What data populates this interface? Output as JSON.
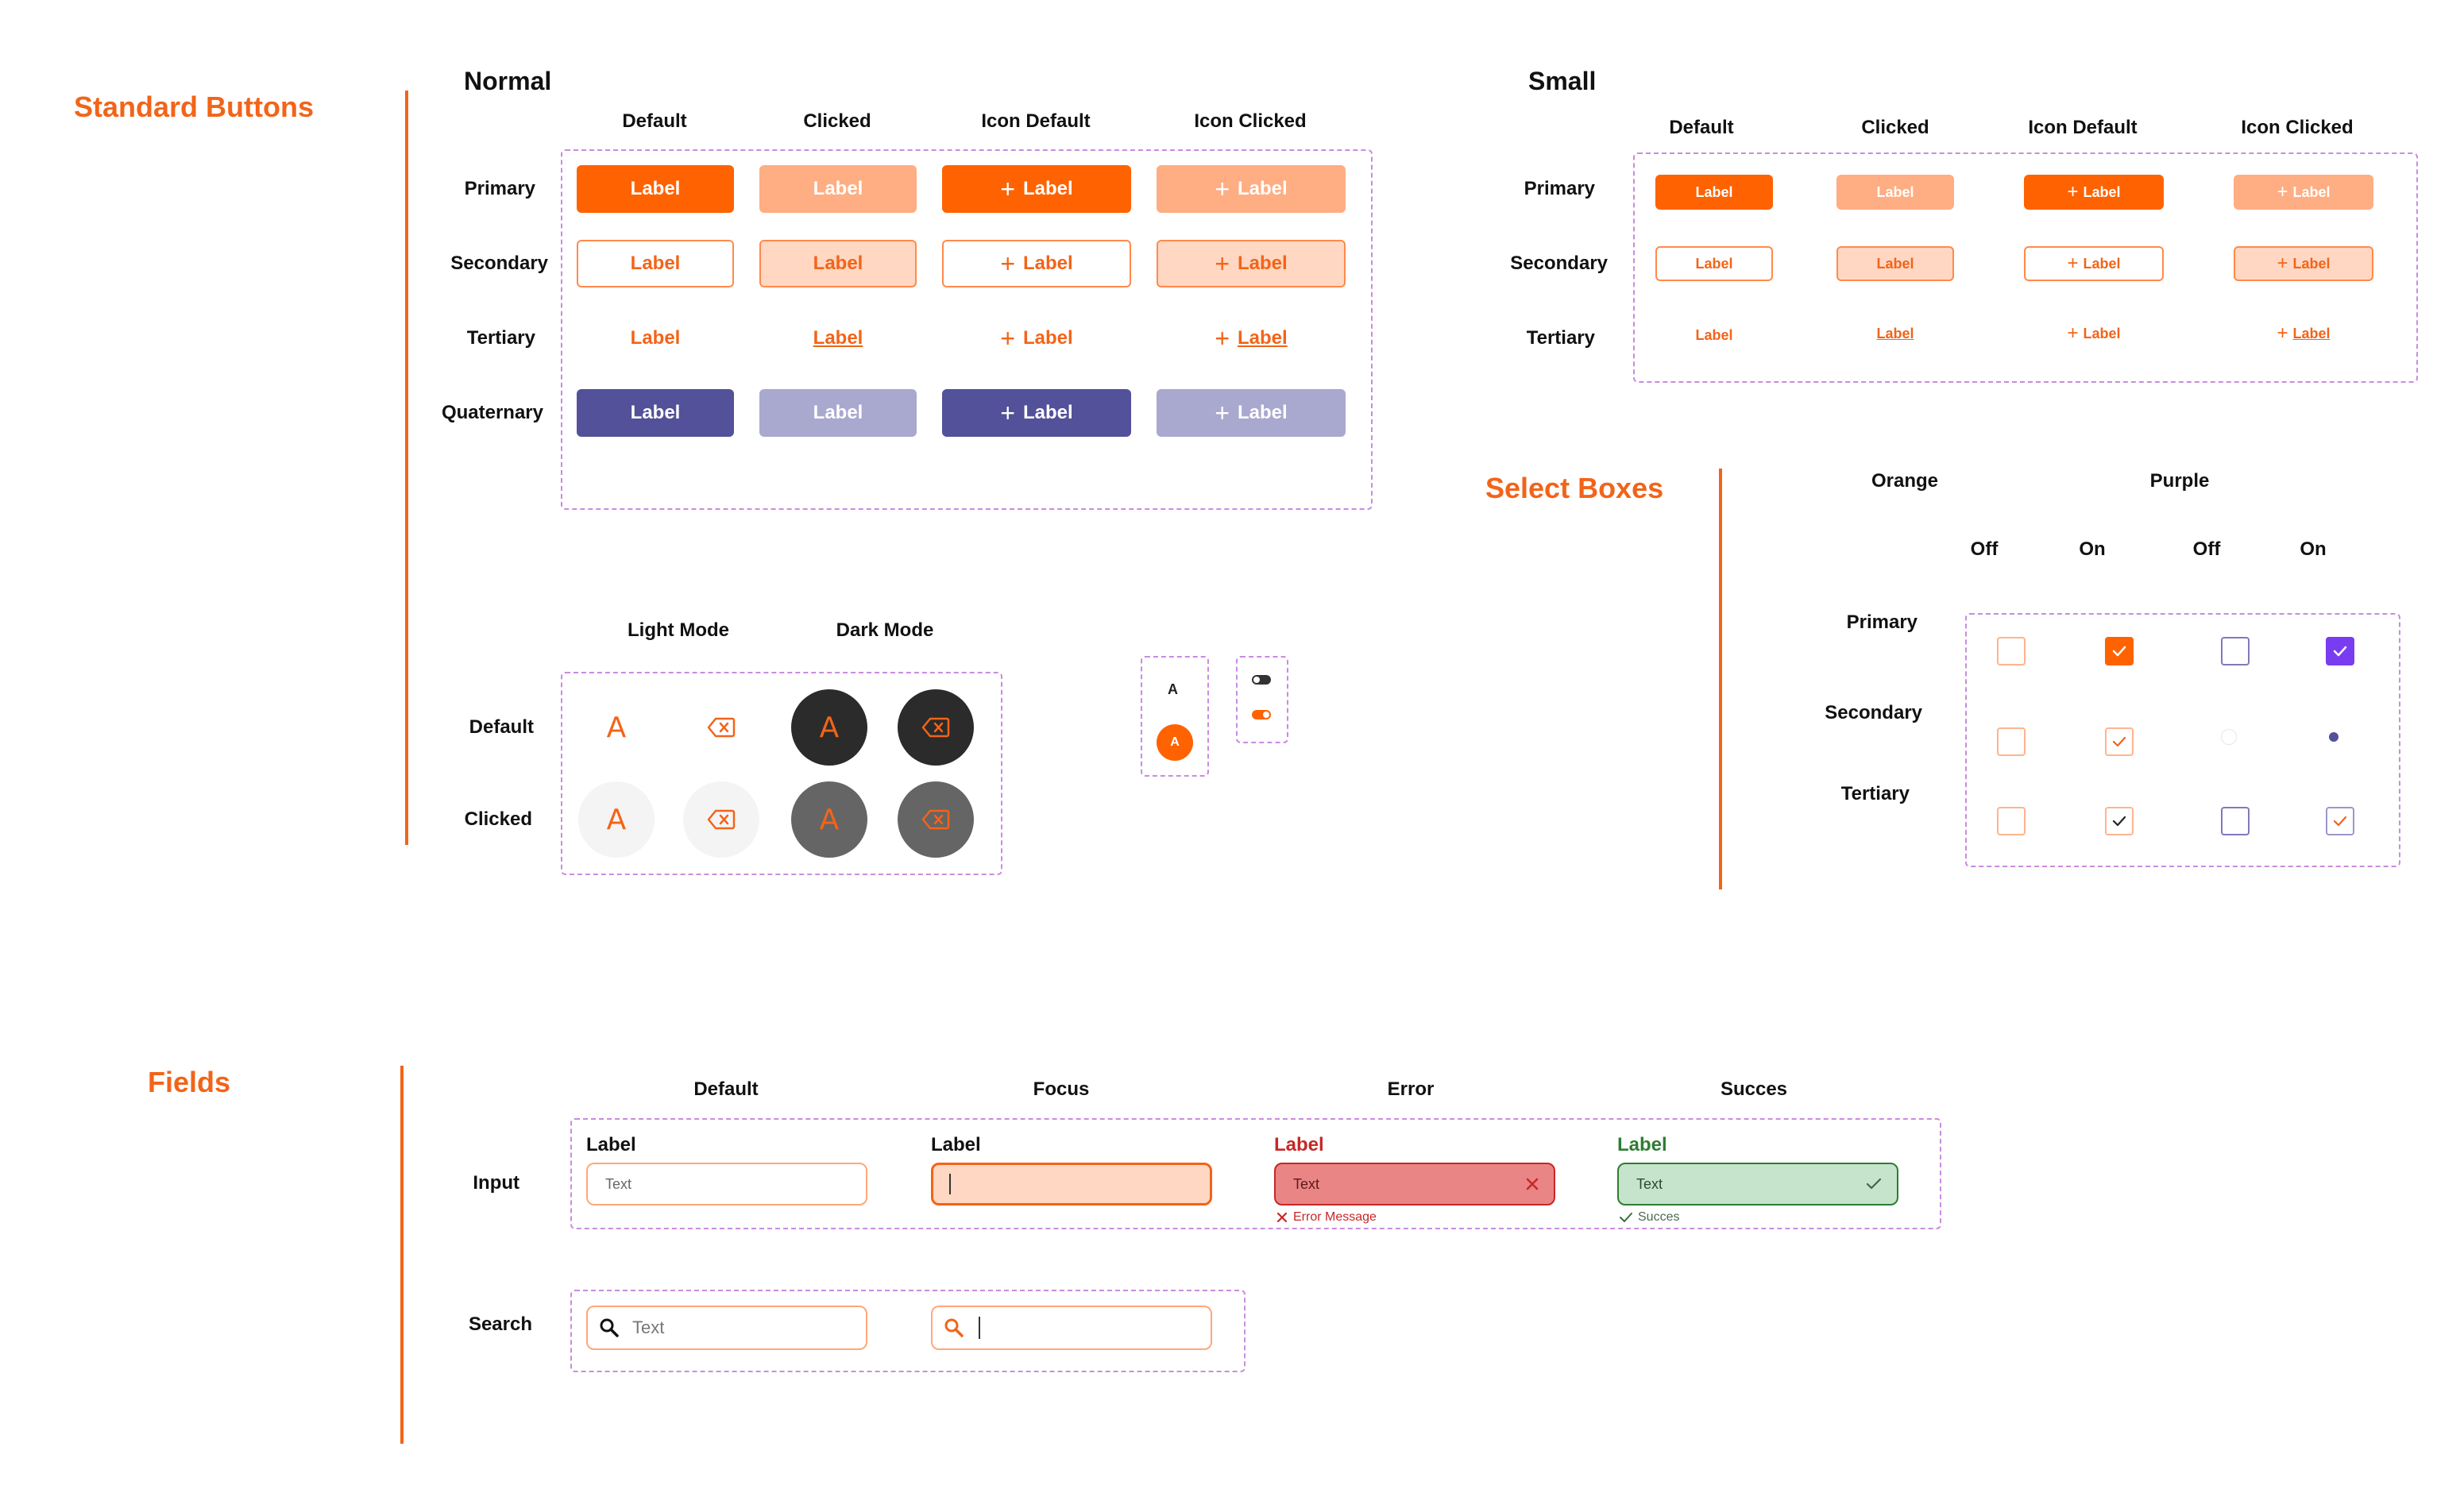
{
  "standard_buttons": {
    "title": "Standard Buttons",
    "normal": {
      "title": "Normal",
      "columns": [
        "Default",
        "Clicked",
        "Icon Default",
        "Icon Clicked"
      ],
      "rows": [
        "Primary",
        "Secondary",
        "Tertiary",
        "Quaternary"
      ],
      "button_label": "Label"
    },
    "small": {
      "title": "Small",
      "columns": [
        "Default",
        "Clicked",
        "Icon Default",
        "Icon Clicked"
      ],
      "rows": [
        "Primary",
        "Secondary",
        "Tertiary"
      ],
      "button_label": "Label"
    },
    "keys": {
      "columns": [
        "Light Mode",
        "Dark Mode"
      ],
      "rows": [
        "Default",
        "Clicked"
      ],
      "key_glyph": "A"
    },
    "mini": {
      "letter_plain": "A",
      "letter_badge": "A"
    }
  },
  "select_boxes": {
    "title": "Select Boxes",
    "groups": [
      "Orange",
      "Purple"
    ],
    "states": [
      "Off",
      "On",
      "Off",
      "On"
    ],
    "rows": [
      "Primary",
      "Secondary",
      "Tertiary"
    ]
  },
  "fields": {
    "title": "Fields",
    "columns": [
      "Default",
      "Focus",
      "Error",
      "Succes"
    ],
    "rows": [
      "Input",
      "Search"
    ],
    "input_label": "Label",
    "placeholder": "Text",
    "error_message": "Error Message",
    "success_message": "Succes"
  },
  "colors": {
    "orange": "#ff6200",
    "orange_light": "#ffad82",
    "purple": "#525199",
    "purple_check": "#7a3cf0",
    "dash": "#c98be0",
    "error": "#c0392b",
    "success": "#2e7d32"
  }
}
